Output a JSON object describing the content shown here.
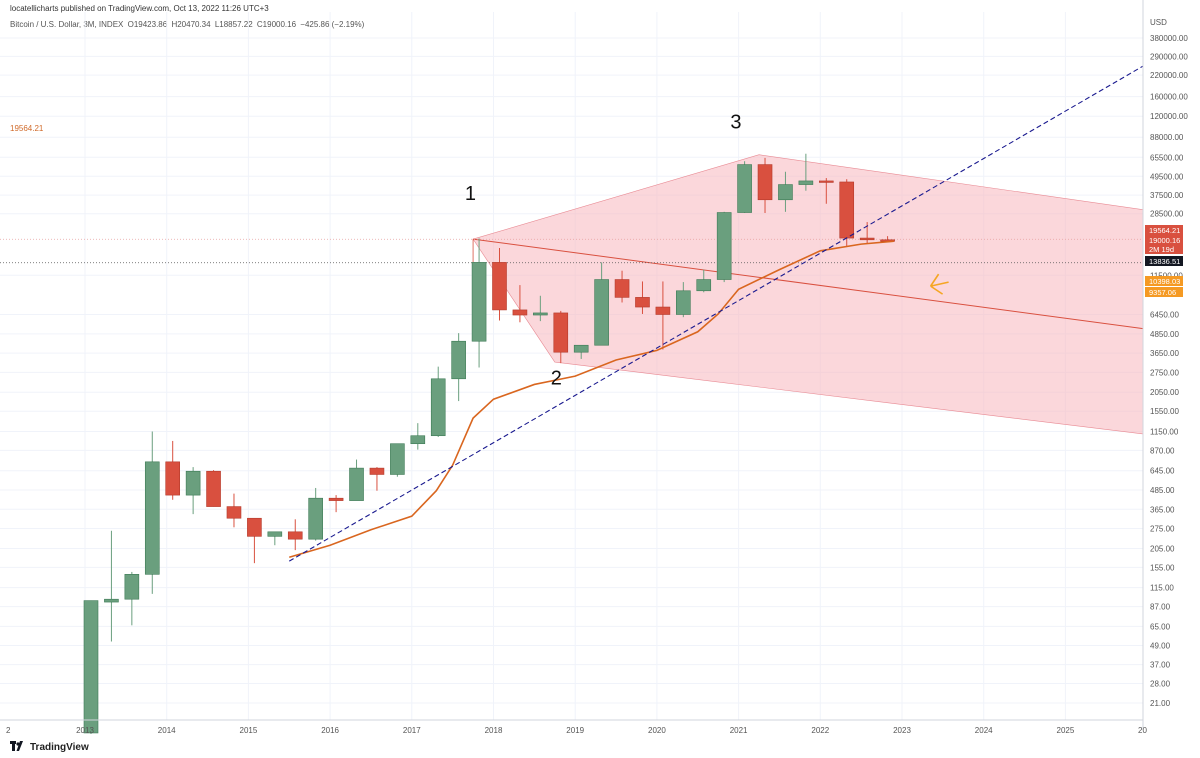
{
  "header": {
    "published": "locatellicharts published on TradingView.com, Oct 13, 2022 11:26 UTC+3"
  },
  "ohlc": {
    "symbol": "Bitcoin / U.S. Dollar, 3M, INDEX",
    "open": "O19423.86",
    "high": "H20470.34",
    "low": "L18857.22",
    "close": "C19000.16",
    "change": "−425.86 (−2.19%)"
  },
  "left_price_label": "19564.21",
  "footer": {
    "brand": "TradingView",
    "logo": "tradingview-logo-icon"
  },
  "colors": {
    "up": "#6a9f7e",
    "down": "#d9503f",
    "ema": "#d9661f",
    "trend": "#1a1a8f",
    "channel": "#f7b6bd",
    "arrow": "#f5a623"
  },
  "chart_data": {
    "type": "candlestick",
    "scale": "log",
    "currency": "USD",
    "period": "3M",
    "y_ticks": [
      380000,
      290000,
      220000,
      160000,
      120000,
      88000,
      65500,
      49500,
      37500,
      28500,
      11500,
      6450,
      4850,
      3650,
      2750,
      2050,
      1550,
      1150,
      870,
      645,
      485,
      365,
      275,
      205,
      155,
      115,
      87,
      65,
      49,
      37,
      28,
      21
    ],
    "y_tick_labels": [
      "380000.00",
      "290000.00",
      "220000.00",
      "160000.00",
      "120000.00",
      "88000.00",
      "65500.00",
      "49500.00",
      "37500.00",
      "28500.00",
      "11500.00",
      "6450.00",
      "4850.00",
      "3650.00",
      "2750.00",
      "2050.00",
      "1550.00",
      "1150.00",
      "870.00",
      "645.00",
      "485.00",
      "365.00",
      "275.00",
      "205.00",
      "155.00",
      "115.00",
      "87.00",
      "65.00",
      "49.00",
      "37.00",
      "28.00",
      "21.00"
    ],
    "x_ticks": [
      2013,
      2014,
      2015,
      2016,
      2017,
      2018,
      2019,
      2020,
      2021,
      2022,
      2023,
      2024,
      2025
    ],
    "x_tick_labels": [
      "2013",
      "2014",
      "2015",
      "2016",
      "2017",
      "2018",
      "2019",
      "2020",
      "2021",
      "2022",
      "2023",
      "2024",
      "2025"
    ],
    "x_edge_labels": [
      "2",
      "20"
    ],
    "price_labels": [
      {
        "value": 19564.21,
        "text": "19564.21",
        "color": "#d9503f"
      },
      {
        "value": 19000.16,
        "text": "19000.16",
        "sub": "2M 19d",
        "color": "#d9503f"
      },
      {
        "value": 13836.51,
        "text": "13836.51",
        "color": "#131722"
      },
      {
        "value": 10398.03,
        "text": "10398.03",
        "color": "#f59a23"
      },
      {
        "value": 9357.06,
        "text": "9357.06",
        "color": "#f59a23"
      }
    ],
    "candles": [
      {
        "t": 2013.0,
        "o": 13.5,
        "h": 95,
        "l": 13.3,
        "c": 95
      },
      {
        "t": 2013.25,
        "o": 93,
        "h": 266,
        "l": 52,
        "c": 97
      },
      {
        "t": 2013.5,
        "o": 97,
        "h": 145,
        "l": 66,
        "c": 140
      },
      {
        "t": 2013.75,
        "o": 140,
        "h": 1150,
        "l": 105,
        "c": 735
      },
      {
        "t": 2014.0,
        "o": 735,
        "h": 1000,
        "l": 420,
        "c": 450
      },
      {
        "t": 2014.25,
        "o": 450,
        "h": 680,
        "l": 340,
        "c": 640
      },
      {
        "t": 2014.5,
        "o": 640,
        "h": 650,
        "l": 380,
        "c": 380
      },
      {
        "t": 2014.75,
        "o": 380,
        "h": 460,
        "l": 280,
        "c": 320
      },
      {
        "t": 2015.0,
        "o": 320,
        "h": 320,
        "l": 165,
        "c": 245
      },
      {
        "t": 2015.25,
        "o": 245,
        "h": 260,
        "l": 215,
        "c": 262
      },
      {
        "t": 2015.5,
        "o": 262,
        "h": 315,
        "l": 200,
        "c": 235
      },
      {
        "t": 2015.75,
        "o": 235,
        "h": 500,
        "l": 230,
        "c": 430
      },
      {
        "t": 2016.0,
        "o": 430,
        "h": 450,
        "l": 350,
        "c": 415
      },
      {
        "t": 2016.25,
        "o": 415,
        "h": 760,
        "l": 420,
        "c": 670
      },
      {
        "t": 2016.5,
        "o": 670,
        "h": 680,
        "l": 480,
        "c": 610
      },
      {
        "t": 2016.75,
        "o": 610,
        "h": 960,
        "l": 590,
        "c": 960
      },
      {
        "t": 2017.0,
        "o": 960,
        "h": 1300,
        "l": 880,
        "c": 1080
      },
      {
        "t": 2017.25,
        "o": 1080,
        "h": 2990,
        "l": 1060,
        "c": 2500
      },
      {
        "t": 2017.5,
        "o": 2500,
        "h": 4900,
        "l": 1800,
        "c": 4350
      },
      {
        "t": 2017.75,
        "o": 4350,
        "h": 19800,
        "l": 2950,
        "c": 13900
      },
      {
        "t": 2018.0,
        "o": 13900,
        "h": 17200,
        "l": 5900,
        "c": 6900
      },
      {
        "t": 2018.25,
        "o": 6900,
        "h": 9950,
        "l": 5750,
        "c": 6400
      },
      {
        "t": 2018.5,
        "o": 6400,
        "h": 8500,
        "l": 5850,
        "c": 6600
      },
      {
        "t": 2018.75,
        "o": 6600,
        "h": 6800,
        "l": 3150,
        "c": 3700
      },
      {
        "t": 2019.0,
        "o": 3700,
        "h": 4100,
        "l": 3350,
        "c": 4100
      },
      {
        "t": 2019.25,
        "o": 4100,
        "h": 13900,
        "l": 4100,
        "c": 10800
      },
      {
        "t": 2019.5,
        "o": 10800,
        "h": 12300,
        "l": 7700,
        "c": 8300
      },
      {
        "t": 2019.75,
        "o": 8300,
        "h": 10500,
        "l": 6500,
        "c": 7200
      },
      {
        "t": 2020.0,
        "o": 7200,
        "h": 10500,
        "l": 3850,
        "c": 6450
      },
      {
        "t": 2020.25,
        "o": 6450,
        "h": 10400,
        "l": 6200,
        "c": 9150
      },
      {
        "t": 2020.5,
        "o": 9150,
        "h": 12500,
        "l": 8950,
        "c": 10800
      },
      {
        "t": 2020.75,
        "o": 10800,
        "h": 29300,
        "l": 10400,
        "c": 29000
      },
      {
        "t": 2021.0,
        "o": 29000,
        "h": 61800,
        "l": 28800,
        "c": 58800
      },
      {
        "t": 2021.25,
        "o": 58800,
        "h": 64900,
        "l": 28800,
        "c": 35000
      },
      {
        "t": 2021.5,
        "o": 35000,
        "h": 52900,
        "l": 29300,
        "c": 43800
      },
      {
        "t": 2021.75,
        "o": 43800,
        "h": 69000,
        "l": 40000,
        "c": 46200
      },
      {
        "t": 2022.0,
        "o": 46200,
        "h": 48200,
        "l": 33000,
        "c": 45500
      },
      {
        "t": 2022.25,
        "o": 45500,
        "h": 47400,
        "l": 17600,
        "c": 19900
      },
      {
        "t": 2022.5,
        "o": 19900,
        "h": 25200,
        "l": 18500,
        "c": 19400
      },
      {
        "t": 2022.75,
        "o": 19400,
        "h": 20470,
        "l": 18857,
        "c": 19000
      }
    ],
    "ema": [
      [
        2015.5,
        180
      ],
      [
        2016.0,
        215
      ],
      [
        2016.5,
        270
      ],
      [
        2017.0,
        330
      ],
      [
        2017.3,
        480
      ],
      [
        2017.5,
        700
      ],
      [
        2017.75,
        1400
      ],
      [
        2018.0,
        1850
      ],
      [
        2018.5,
        2300
      ],
      [
        2019.0,
        2600
      ],
      [
        2019.5,
        3300
      ],
      [
        2020.0,
        3800
      ],
      [
        2020.5,
        5000
      ],
      [
        2020.75,
        6500
      ],
      [
        2021.0,
        9357
      ],
      [
        2021.5,
        12500
      ],
      [
        2022.0,
        16500
      ],
      [
        2022.5,
        18200
      ],
      [
        2022.9,
        19000
      ]
    ],
    "trendline": {
      "from": [
        2015.5,
        170
      ],
      "to": [
        2026.0,
        260000
      ]
    },
    "channel": {
      "upper_from": [
        2021.25,
        68000
      ],
      "upper_to": [
        2026.0,
        30000
      ],
      "lower_from": [
        2018.75,
        3200
      ],
      "lower_to": [
        2026.0,
        1100
      ],
      "median_from": [
        2017.75,
        19600
      ],
      "median_to": [
        2026.0,
        5200
      ]
    },
    "hline_values": [
      19564.21,
      13836.51
    ],
    "annotations": [
      {
        "label": "1",
        "t": 2017.65,
        "v": 35000
      },
      {
        "label": "2",
        "t": 2018.7,
        "v": 2300
      },
      {
        "label": "3",
        "t": 2020.9,
        "v": 100000
      }
    ],
    "arrow": {
      "t": 2023.35,
      "v": 9800
    }
  }
}
